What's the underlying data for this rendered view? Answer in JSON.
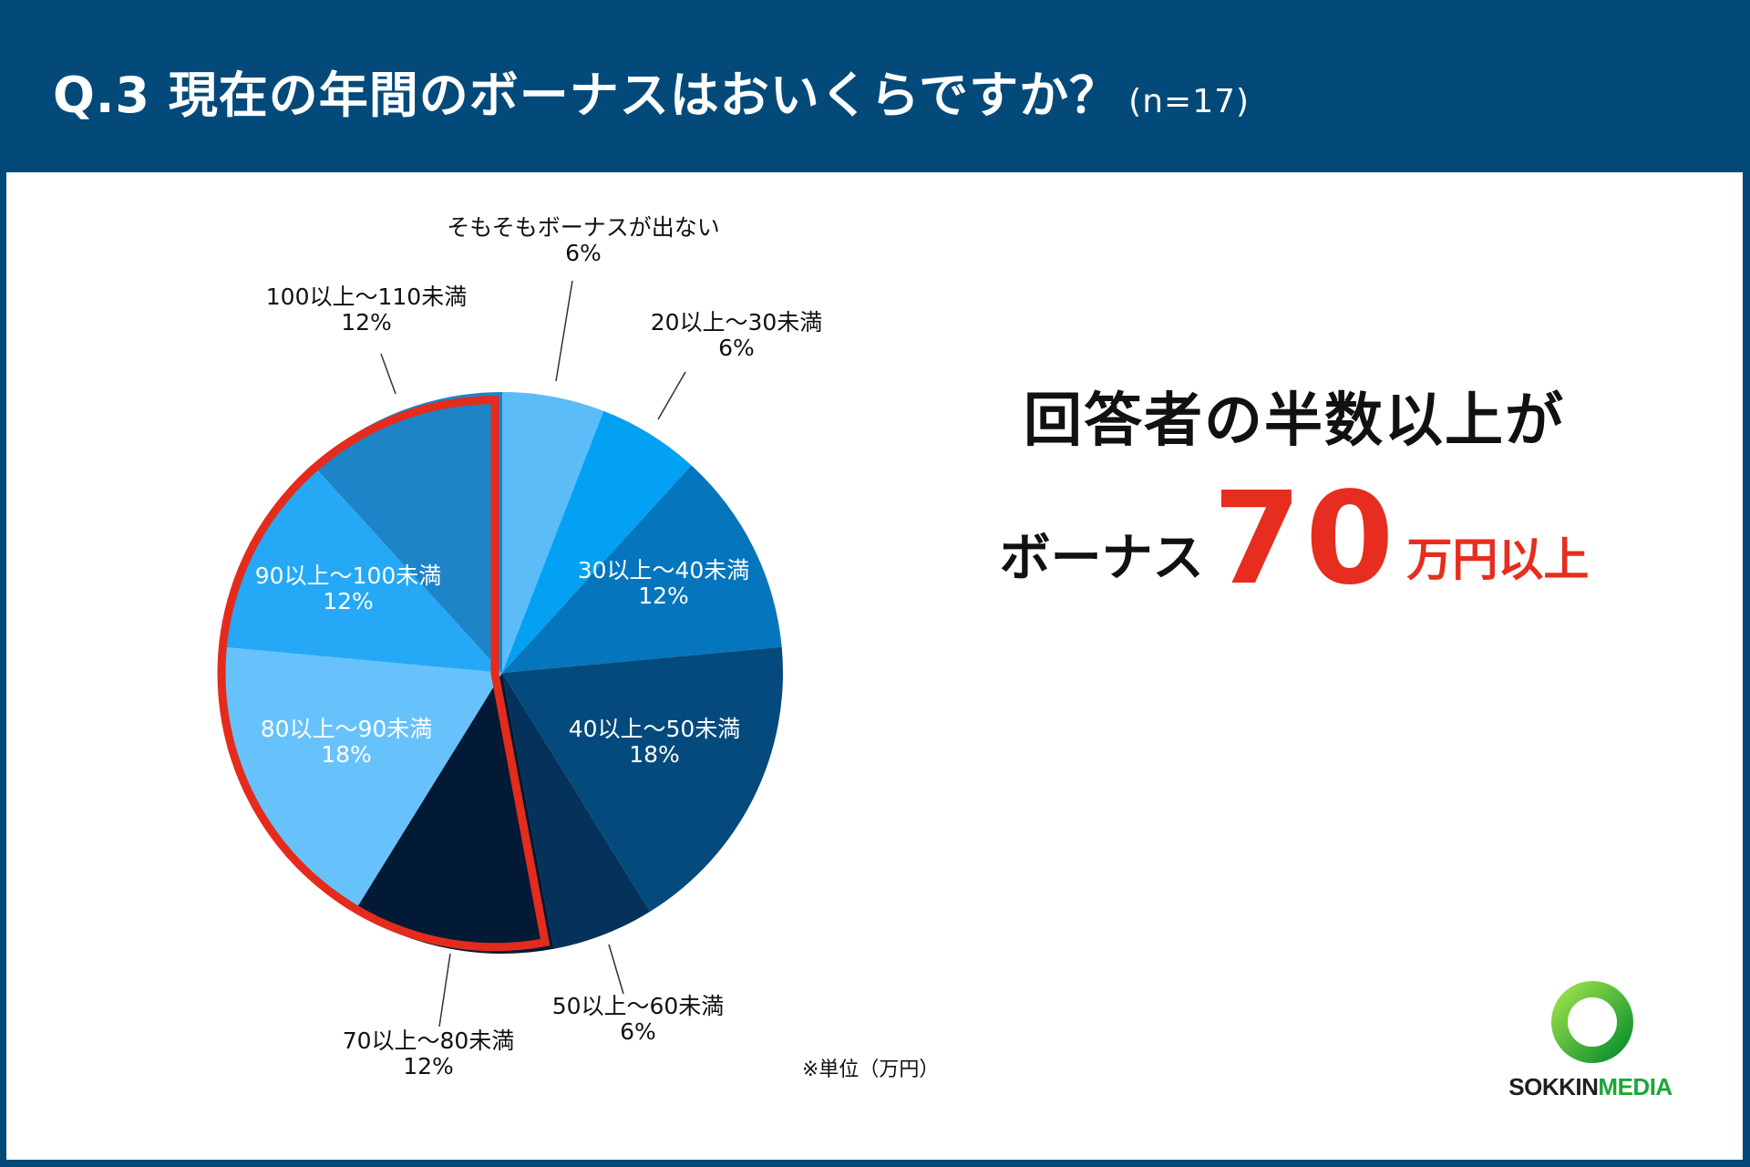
{
  "header": {
    "title": "Q.3 現在の年間のボーナスはおいくらですか？",
    "sample_size": "(n=17)"
  },
  "chart_data": {
    "type": "pie",
    "title": "Q.3 現在の年間のボーナスはおいくらですか？",
    "unit_note": "※単位（万円）",
    "slices": [
      {
        "label": "そもそもボーナスが出ない",
        "pct_label": "6%",
        "value": 6,
        "color": "#5bbcf7",
        "label_color": "#111111",
        "label_pos": "outside",
        "highlight": false
      },
      {
        "label": "20以上〜30未満",
        "pct_label": "6%",
        "value": 6,
        "color": "#03a1f4",
        "label_color": "#111111",
        "label_pos": "outside",
        "highlight": false
      },
      {
        "label": "30以上〜40未満",
        "pct_label": "12%",
        "value": 12,
        "color": "#0576bd",
        "label_color": "#ffffff",
        "label_pos": "inside",
        "highlight": false
      },
      {
        "label": "40以上〜50未満",
        "pct_label": "18%",
        "value": 18,
        "color": "#044a7d",
        "label_color": "#ffffff",
        "label_pos": "inside",
        "highlight": false
      },
      {
        "label": "50以上〜60未満",
        "pct_label": "6%",
        "value": 6,
        "color": "#04325a",
        "label_color": "#111111",
        "label_pos": "outside",
        "highlight": false
      },
      {
        "label": "70以上〜80未満",
        "pct_label": "12%",
        "value": 12,
        "color": "#021a36",
        "label_color": "#111111",
        "label_pos": "outside",
        "highlight": true
      },
      {
        "label": "80以上〜90未満",
        "pct_label": "18%",
        "value": 18,
        "color": "#67c2fb",
        "label_color": "#ffffff",
        "label_pos": "inside",
        "highlight": true
      },
      {
        "label": "90以上〜100未満",
        "pct_label": "12%",
        "value": 12,
        "color": "#25a9f6",
        "label_color": "#ffffff",
        "label_pos": "inside",
        "highlight": true
      },
      {
        "label": "100以上〜110未満",
        "pct_label": "12%",
        "value": 12,
        "color": "#1c84c7",
        "label_color": "#111111",
        "label_pos": "outside",
        "highlight": true
      }
    ],
    "highlight_color": "#e52b1c"
  },
  "callout": {
    "line1": "回答者の半数以上が",
    "prefix": "ボーナス",
    "number": "70",
    "suffix": "万円以上"
  },
  "logo": {
    "text_dark": "SOKKIN",
    "text_green": "MEDIA"
  }
}
